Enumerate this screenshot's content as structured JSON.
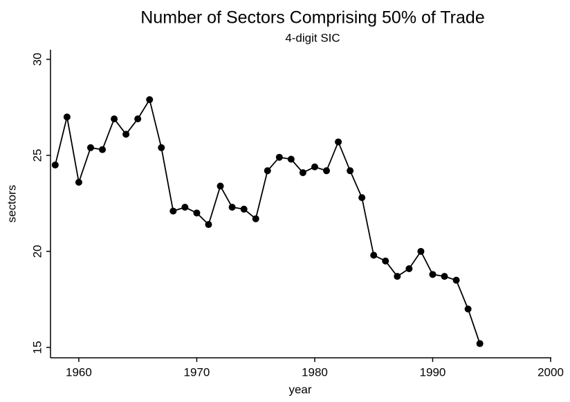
{
  "chart_data": {
    "type": "line",
    "title": "Number of Sectors Comprising 50% of Trade",
    "subtitle": "4-digit SIC",
    "x_label": "year",
    "y_label": "sectors",
    "x": [
      1958,
      1959,
      1960,
      1961,
      1962,
      1963,
      1964,
      1965,
      1966,
      1967,
      1968,
      1969,
      1970,
      1971,
      1972,
      1973,
      1974,
      1975,
      1976,
      1977,
      1978,
      1979,
      1980,
      1981,
      1982,
      1983,
      1984,
      1985,
      1986,
      1987,
      1988,
      1989,
      1990,
      1991,
      1992,
      1993,
      1994
    ],
    "series": [
      {
        "name": "sectors",
        "color": "#000000",
        "values": [
          24.5,
          27.0,
          23.6,
          25.4,
          25.3,
          26.9,
          26.1,
          26.9,
          27.9,
          25.4,
          22.1,
          22.3,
          22.0,
          21.4,
          23.4,
          22.3,
          22.2,
          21.7,
          24.2,
          24.9,
          24.8,
          24.1,
          24.4,
          24.2,
          25.7,
          24.2,
          22.8,
          19.8,
          19.5,
          18.7,
          19.1,
          20.0,
          18.8,
          18.7,
          18.5,
          17.0,
          15.2
        ]
      }
    ],
    "xlim": [
      1957.6,
      2000
    ],
    "xticks": [
      1960,
      1970,
      1980,
      1990,
      2000
    ],
    "ylim": [
      14.46,
      30.5
    ],
    "yticks": [
      15,
      20,
      25,
      30
    ],
    "grid": false
  }
}
